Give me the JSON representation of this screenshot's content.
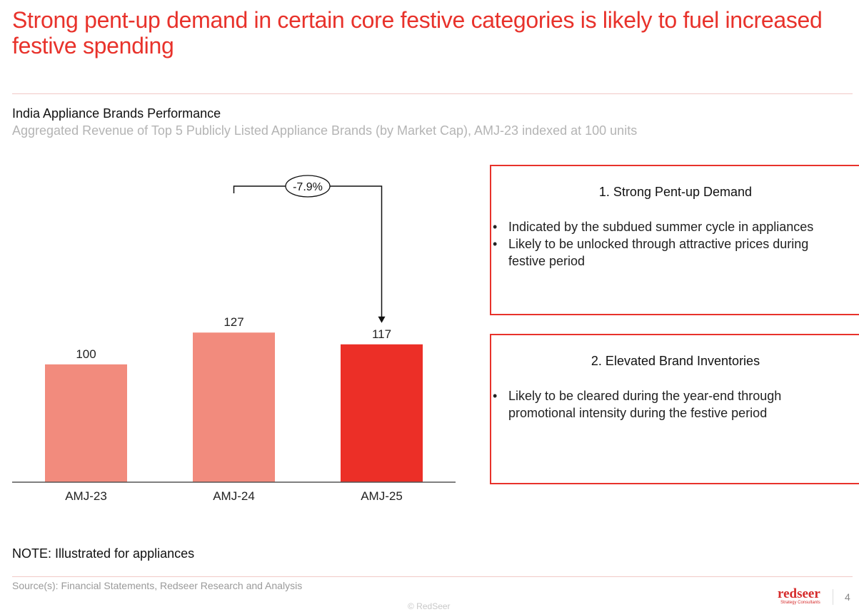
{
  "header": {
    "title": "Strong pent-up demand in certain core festive categories is likely to fuel increased festive spending"
  },
  "chart_data": {
    "type": "bar",
    "title": "India Appliance Brands Performance",
    "subtitle": "Aggregated Revenue of Top 5 Publicly Listed Appliance Brands (by Market Cap), AMJ-23 indexed at 100 units",
    "categories": [
      "AMJ-23",
      "AMJ-24",
      "AMJ-25"
    ],
    "values": [
      100,
      127,
      117
    ],
    "bar_colors": [
      "#f28b7d",
      "#f28b7d",
      "#ec2f27"
    ],
    "ylim": [
      0,
      155
    ],
    "annotation": {
      "label": "-7.9%",
      "from": "AMJ-24",
      "to": "AMJ-25"
    },
    "xlabel": "",
    "ylabel": "",
    "grid": false
  },
  "panels": [
    {
      "title": "1. Strong Pent-up Demand",
      "bullets": [
        "Indicated by the subdued summer cycle in appliances",
        "Likely to be unlocked through attractive prices during festive period"
      ]
    },
    {
      "title": "2. Elevated Brand Inventories",
      "bullets": [
        "Likely to be cleared during the year-end through promotional intensity during the festive period"
      ]
    }
  ],
  "footer": {
    "note": "NOTE: Illustrated for appliances",
    "source": "Source(s): Financial Statements, Redseer Research and Analysis",
    "logo_main": "redseer",
    "logo_sub": "Strategy Consultants",
    "page_number": "4",
    "copyright": "© RedSeer"
  },
  "colors": {
    "accent": "#e8322b",
    "bar_light": "#f28b7d",
    "bar_dark": "#ec2f27"
  }
}
